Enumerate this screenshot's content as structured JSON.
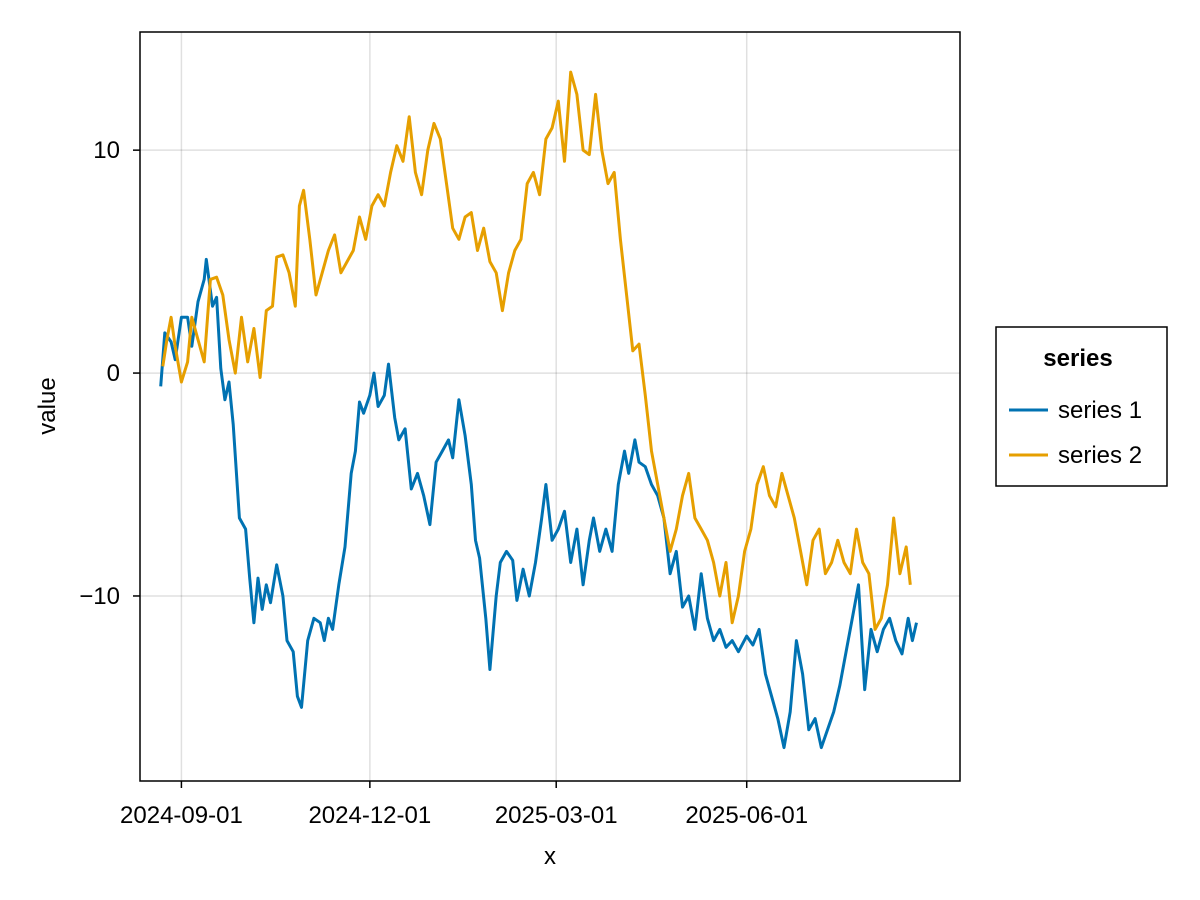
{
  "chart_data": {
    "type": "line",
    "xlabel": "x",
    "ylabel": "value",
    "x_tick_labels": [
      "2024-09-01",
      "2024-12-01",
      "2025-03-01",
      "2025-06-01"
    ],
    "y_ticks": [
      -10,
      0,
      10
    ],
    "y_tick_labels": [
      "−10",
      "0",
      "10"
    ],
    "xlim": [
      "2024-08-12",
      "2025-09-12"
    ],
    "ylim": [
      -18.3,
      15.3
    ],
    "grid": true,
    "legend": {
      "title": "series",
      "position": "right"
    },
    "series": [
      {
        "name": "series 1",
        "color": "#0072B2",
        "points": [
          [
            "2024-08-22",
            -0.6
          ],
          [
            "2024-08-24",
            1.8
          ],
          [
            "2024-08-27",
            1.4
          ],
          [
            "2024-08-29",
            0.6
          ],
          [
            "2024-09-01",
            2.5
          ],
          [
            "2024-09-04",
            2.5
          ],
          [
            "2024-09-06",
            1.2
          ],
          [
            "2024-09-09",
            3.2
          ],
          [
            "2024-09-12",
            4.2
          ],
          [
            "2024-09-13",
            5.1
          ],
          [
            "2024-09-16",
            3.0
          ],
          [
            "2024-09-18",
            3.4
          ],
          [
            "2024-09-20",
            0.2
          ],
          [
            "2024-09-22",
            -1.2
          ],
          [
            "2024-09-24",
            -0.4
          ],
          [
            "2024-09-26",
            -2.3
          ],
          [
            "2024-09-29",
            -6.5
          ],
          [
            "2024-10-02",
            -7.0
          ],
          [
            "2024-10-04",
            -9.2
          ],
          [
            "2024-10-06",
            -11.2
          ],
          [
            "2024-10-08",
            -9.2
          ],
          [
            "2024-10-10",
            -10.6
          ],
          [
            "2024-10-12",
            -9.5
          ],
          [
            "2024-10-14",
            -10.3
          ],
          [
            "2024-10-17",
            -8.6
          ],
          [
            "2024-10-20",
            -10.0
          ],
          [
            "2024-10-22",
            -12.0
          ],
          [
            "2024-10-25",
            -12.5
          ],
          [
            "2024-10-27",
            -14.5
          ],
          [
            "2024-10-29",
            -15.0
          ],
          [
            "2024-11-01",
            -12.0
          ],
          [
            "2024-11-04",
            -11.0
          ],
          [
            "2024-11-07",
            -11.2
          ],
          [
            "2024-11-09",
            -12.0
          ],
          [
            "2024-11-11",
            -11.0
          ],
          [
            "2024-11-13",
            -11.5
          ],
          [
            "2024-11-16",
            -9.5
          ],
          [
            "2024-11-19",
            -7.8
          ],
          [
            "2024-11-22",
            -4.5
          ],
          [
            "2024-11-24",
            -3.5
          ],
          [
            "2024-11-26",
            -1.3
          ],
          [
            "2024-11-28",
            -1.8
          ],
          [
            "2024-12-01",
            -1.0
          ],
          [
            "2024-12-03",
            0.0
          ],
          [
            "2024-12-05",
            -1.5
          ],
          [
            "2024-12-08",
            -1.0
          ],
          [
            "2024-12-10",
            0.4
          ],
          [
            "2024-12-13",
            -2.0
          ],
          [
            "2024-12-15",
            -3.0
          ],
          [
            "2024-12-18",
            -2.5
          ],
          [
            "2024-12-21",
            -5.2
          ],
          [
            "2024-12-24",
            -4.5
          ],
          [
            "2024-12-27",
            -5.5
          ],
          [
            "2024-12-30",
            -6.8
          ],
          [
            "2025-01-02",
            -4.0
          ],
          [
            "2025-01-05",
            -3.5
          ],
          [
            "2025-01-08",
            -3.0
          ],
          [
            "2025-01-10",
            -3.8
          ],
          [
            "2025-01-13",
            -1.2
          ],
          [
            "2025-01-16",
            -2.8
          ],
          [
            "2025-01-19",
            -5.0
          ],
          [
            "2025-01-21",
            -7.5
          ],
          [
            "2025-01-23",
            -8.3
          ],
          [
            "2025-01-26",
            -11.0
          ],
          [
            "2025-01-28",
            -13.3
          ],
          [
            "2025-01-31",
            -10.0
          ],
          [
            "2025-02-02",
            -8.5
          ],
          [
            "2025-02-05",
            -8.0
          ],
          [
            "2025-02-08",
            -8.4
          ],
          [
            "2025-02-10",
            -10.2
          ],
          [
            "2025-02-13",
            -8.8
          ],
          [
            "2025-02-16",
            -10.0
          ],
          [
            "2025-02-19",
            -8.5
          ],
          [
            "2025-02-22",
            -6.5
          ],
          [
            "2025-02-24",
            -5.0
          ],
          [
            "2025-02-27",
            -7.5
          ],
          [
            "2025-03-02",
            -7.0
          ],
          [
            "2025-03-05",
            -6.2
          ],
          [
            "2025-03-08",
            -8.5
          ],
          [
            "2025-03-11",
            -7.0
          ],
          [
            "2025-03-14",
            -9.5
          ],
          [
            "2025-03-17",
            -7.5
          ],
          [
            "2025-03-19",
            -6.5
          ],
          [
            "2025-03-22",
            -8.0
          ],
          [
            "2025-03-25",
            -7.0
          ],
          [
            "2025-03-28",
            -8.0
          ],
          [
            "2025-03-31",
            -5.0
          ],
          [
            "2025-04-03",
            -3.5
          ],
          [
            "2025-04-05",
            -4.5
          ],
          [
            "2025-04-08",
            -3.0
          ],
          [
            "2025-04-10",
            -4.0
          ],
          [
            "2025-04-13",
            -4.2
          ],
          [
            "2025-04-16",
            -5.0
          ],
          [
            "2025-04-19",
            -5.5
          ],
          [
            "2025-04-22",
            -6.5
          ],
          [
            "2025-04-25",
            -9.0
          ],
          [
            "2025-04-28",
            -8.0
          ],
          [
            "2025-05-01",
            -10.5
          ],
          [
            "2025-05-04",
            -10.0
          ],
          [
            "2025-05-07",
            -11.5
          ],
          [
            "2025-05-10",
            -9.0
          ],
          [
            "2025-05-13",
            -11.0
          ],
          [
            "2025-05-16",
            -12.0
          ],
          [
            "2025-05-19",
            -11.5
          ],
          [
            "2025-05-22",
            -12.3
          ],
          [
            "2025-05-25",
            -12.0
          ],
          [
            "2025-05-28",
            -12.5
          ],
          [
            "2025-06-01",
            -11.8
          ],
          [
            "2025-06-04",
            -12.2
          ],
          [
            "2025-06-07",
            -11.5
          ],
          [
            "2025-06-10",
            -13.5
          ],
          [
            "2025-06-13",
            -14.5
          ],
          [
            "2025-06-16",
            -15.5
          ],
          [
            "2025-06-19",
            -16.8
          ],
          [
            "2025-06-22",
            -15.2
          ],
          [
            "2025-06-25",
            -12.0
          ],
          [
            "2025-06-28",
            -13.5
          ],
          [
            "2025-07-01",
            -16.0
          ],
          [
            "2025-07-04",
            -15.5
          ],
          [
            "2025-07-07",
            -16.8
          ],
          [
            "2025-07-10",
            -16.0
          ],
          [
            "2025-07-13",
            -15.2
          ],
          [
            "2025-07-16",
            -14.0
          ],
          [
            "2025-07-19",
            -12.5
          ],
          [
            "2025-07-22",
            -11.0
          ],
          [
            "2025-07-25",
            -9.5
          ],
          [
            "2025-07-28",
            -14.2
          ],
          [
            "2025-07-31",
            -11.5
          ],
          [
            "2025-08-03",
            -12.5
          ],
          [
            "2025-08-06",
            -11.5
          ],
          [
            "2025-08-09",
            -11.0
          ],
          [
            "2025-08-12",
            -12.0
          ],
          [
            "2025-08-15",
            -12.6
          ],
          [
            "2025-08-18",
            -11.0
          ],
          [
            "2025-08-20",
            -12.0
          ],
          [
            "2025-08-22",
            -11.2
          ]
        ]
      },
      {
        "name": "series 2",
        "color": "#E69F00",
        "points": [
          [
            "2024-08-23",
            0.3
          ],
          [
            "2024-08-25",
            1.5
          ],
          [
            "2024-08-27",
            2.5
          ],
          [
            "2024-08-29",
            1.2
          ],
          [
            "2024-09-01",
            -0.4
          ],
          [
            "2024-09-04",
            0.5
          ],
          [
            "2024-09-06",
            2.5
          ],
          [
            "2024-09-09",
            1.5
          ],
          [
            "2024-09-12",
            0.5
          ],
          [
            "2024-09-15",
            4.2
          ],
          [
            "2024-09-18",
            4.3
          ],
          [
            "2024-09-21",
            3.5
          ],
          [
            "2024-09-24",
            1.5
          ],
          [
            "2024-09-27",
            0.0
          ],
          [
            "2024-09-30",
            2.5
          ],
          [
            "2024-10-03",
            0.5
          ],
          [
            "2024-10-06",
            2.0
          ],
          [
            "2024-10-09",
            -0.2
          ],
          [
            "2024-10-12",
            2.8
          ],
          [
            "2024-10-15",
            3.0
          ],
          [
            "2024-10-17",
            5.2
          ],
          [
            "2024-10-20",
            5.3
          ],
          [
            "2024-10-23",
            4.5
          ],
          [
            "2024-10-26",
            3.0
          ],
          [
            "2024-10-28",
            7.5
          ],
          [
            "2024-10-30",
            8.2
          ],
          [
            "2024-11-02",
            6.0
          ],
          [
            "2024-11-05",
            3.5
          ],
          [
            "2024-11-08",
            4.5
          ],
          [
            "2024-11-11",
            5.5
          ],
          [
            "2024-11-14",
            6.2
          ],
          [
            "2024-11-17",
            4.5
          ],
          [
            "2024-11-20",
            5.0
          ],
          [
            "2024-11-23",
            5.5
          ],
          [
            "2024-11-26",
            7.0
          ],
          [
            "2024-11-29",
            6.0
          ],
          [
            "2024-12-02",
            7.5
          ],
          [
            "2024-12-05",
            8.0
          ],
          [
            "2024-12-08",
            7.5
          ],
          [
            "2024-12-11",
            9.0
          ],
          [
            "2024-12-14",
            10.2
          ],
          [
            "2024-12-17",
            9.5
          ],
          [
            "2024-12-20",
            11.5
          ],
          [
            "2024-12-23",
            9.0
          ],
          [
            "2024-12-26",
            8.0
          ],
          [
            "2024-12-29",
            10.0
          ],
          [
            "2025-01-01",
            11.2
          ],
          [
            "2025-01-04",
            10.5
          ],
          [
            "2025-01-07",
            8.5
          ],
          [
            "2025-01-10",
            6.5
          ],
          [
            "2025-01-13",
            6.0
          ],
          [
            "2025-01-16",
            7.0
          ],
          [
            "2025-01-19",
            7.2
          ],
          [
            "2025-01-22",
            5.5
          ],
          [
            "2025-01-25",
            6.5
          ],
          [
            "2025-01-28",
            5.0
          ],
          [
            "2025-01-31",
            4.5
          ],
          [
            "2025-02-03",
            2.8
          ],
          [
            "2025-02-06",
            4.5
          ],
          [
            "2025-02-09",
            5.5
          ],
          [
            "2025-02-12",
            6.0
          ],
          [
            "2025-02-15",
            8.5
          ],
          [
            "2025-02-18",
            9.0
          ],
          [
            "2025-02-21",
            8.0
          ],
          [
            "2025-02-24",
            10.5
          ],
          [
            "2025-02-27",
            11.0
          ],
          [
            "2025-03-02",
            12.2
          ],
          [
            "2025-03-05",
            9.5
          ],
          [
            "2025-03-08",
            13.5
          ],
          [
            "2025-03-11",
            12.5
          ],
          [
            "2025-03-14",
            10.0
          ],
          [
            "2025-03-17",
            9.8
          ],
          [
            "2025-03-20",
            12.5
          ],
          [
            "2025-03-23",
            10.0
          ],
          [
            "2025-03-26",
            8.5
          ],
          [
            "2025-03-29",
            9.0
          ],
          [
            "2025-04-01",
            6.0
          ],
          [
            "2025-04-04",
            3.5
          ],
          [
            "2025-04-07",
            1.0
          ],
          [
            "2025-04-10",
            1.3
          ],
          [
            "2025-04-13",
            -1.0
          ],
          [
            "2025-04-16",
            -3.5
          ],
          [
            "2025-04-19",
            -5.0
          ],
          [
            "2025-04-22",
            -6.5
          ],
          [
            "2025-04-25",
            -8.0
          ],
          [
            "2025-04-28",
            -7.0
          ],
          [
            "2025-05-01",
            -5.5
          ],
          [
            "2025-05-04",
            -4.5
          ],
          [
            "2025-05-07",
            -6.5
          ],
          [
            "2025-05-10",
            -7.0
          ],
          [
            "2025-05-13",
            -7.5
          ],
          [
            "2025-05-16",
            -8.5
          ],
          [
            "2025-05-19",
            -10.0
          ],
          [
            "2025-05-22",
            -8.5
          ],
          [
            "2025-05-25",
            -11.2
          ],
          [
            "2025-05-28",
            -10.0
          ],
          [
            "2025-05-31",
            -8.0
          ],
          [
            "2025-06-03",
            -7.0
          ],
          [
            "2025-06-06",
            -5.0
          ],
          [
            "2025-06-09",
            -4.2
          ],
          [
            "2025-06-12",
            -5.5
          ],
          [
            "2025-06-15",
            -6.0
          ],
          [
            "2025-06-18",
            -4.5
          ],
          [
            "2025-06-21",
            -5.5
          ],
          [
            "2025-06-24",
            -6.5
          ],
          [
            "2025-06-27",
            -8.0
          ],
          [
            "2025-06-30",
            -9.5
          ],
          [
            "2025-07-03",
            -7.5
          ],
          [
            "2025-07-06",
            -7.0
          ],
          [
            "2025-07-09",
            -9.0
          ],
          [
            "2025-07-12",
            -8.5
          ],
          [
            "2025-07-15",
            -7.5
          ],
          [
            "2025-07-18",
            -8.5
          ],
          [
            "2025-07-21",
            -9.0
          ],
          [
            "2025-07-24",
            -7.0
          ],
          [
            "2025-07-27",
            -8.5
          ],
          [
            "2025-07-30",
            -9.0
          ],
          [
            "2025-08-02",
            -11.5
          ],
          [
            "2025-08-05",
            -11.0
          ],
          [
            "2025-08-08",
            -9.5
          ],
          [
            "2025-08-11",
            -6.5
          ],
          [
            "2025-08-14",
            -9.0
          ],
          [
            "2025-08-17",
            -7.8
          ],
          [
            "2025-08-19",
            -9.5
          ]
        ]
      }
    ]
  }
}
